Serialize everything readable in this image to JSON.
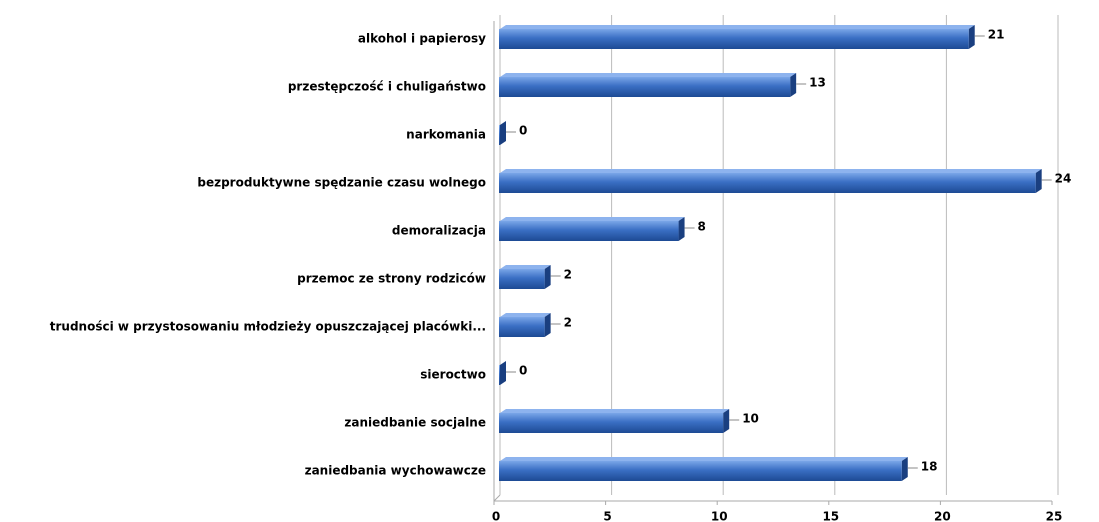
{
  "chart_data": {
    "type": "bar",
    "orientation": "horizontal",
    "categories": [
      "alkohol i papierosy",
      "przestępczość i chuligaństwo",
      "narkomania",
      "bezproduktywne spędzanie czasu wolnego",
      "demoralizacja",
      "przemoc ze strony rodziców",
      "trudności w przystosowaniu młodzieży opuszczającej placówki...",
      "sieroctwo",
      "zaniedbanie socjalne",
      "zaniedbania wychowawcze"
    ],
    "values": [
      21,
      13,
      0,
      24,
      8,
      2,
      2,
      0,
      10,
      18
    ],
    "color": "#3a6fc4",
    "xlim": [
      0,
      25
    ],
    "xticks": [
      0,
      5,
      10,
      15,
      20,
      25
    ],
    "grid": true
  }
}
